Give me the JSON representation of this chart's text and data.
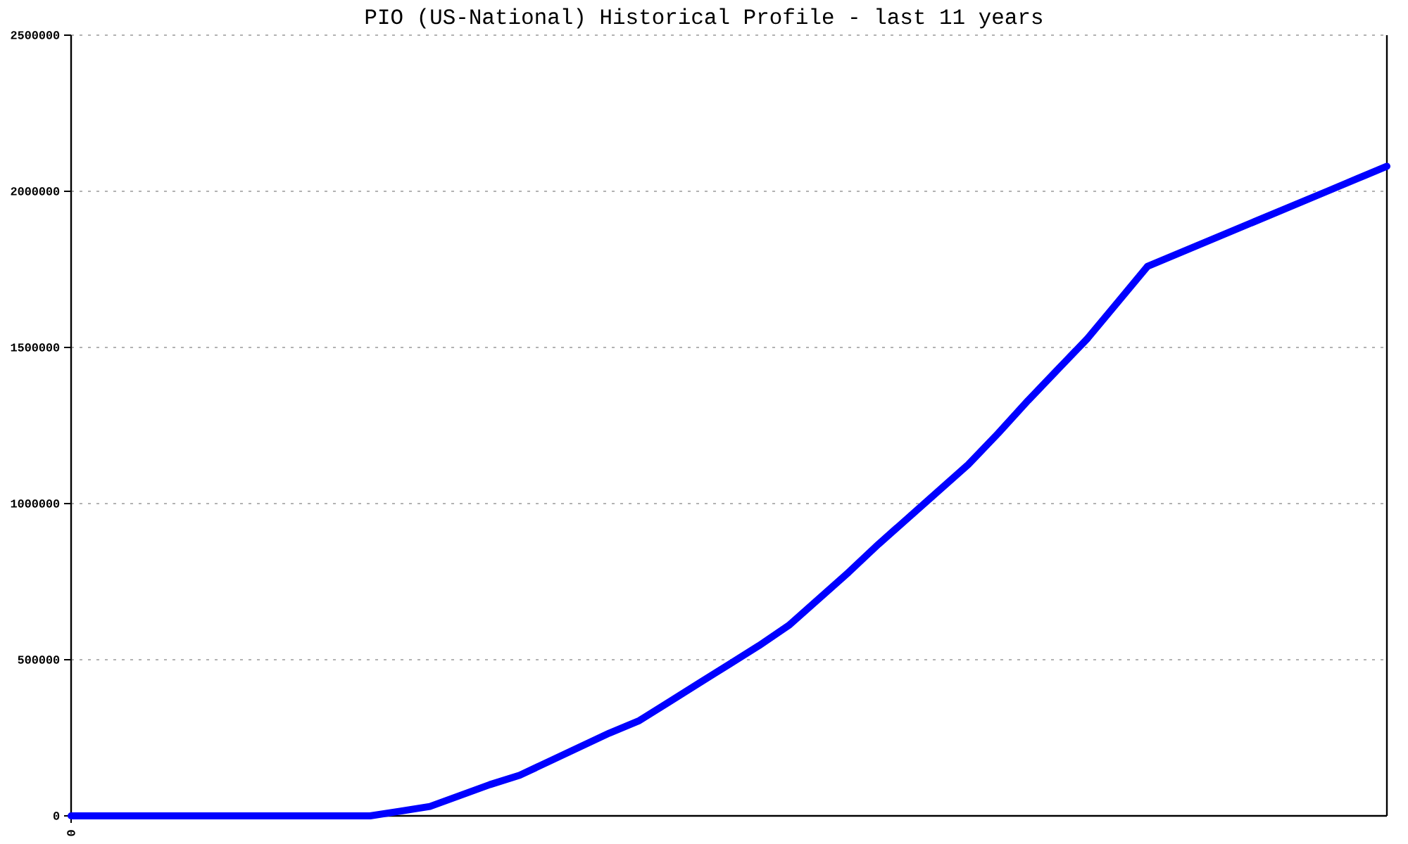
{
  "chart_data": {
    "type": "line",
    "title": "PIO (US-National) Historical Profile - last 11 years",
    "categories": [
      "0",
      null,
      null,
      null,
      null,
      null,
      null,
      null,
      null,
      null,
      null,
      null,
      null,
      null,
      null,
      null,
      null,
      null,
      null,
      null,
      null,
      null,
      null,
      null,
      null,
      null,
      null,
      null,
      null,
      null,
      null,
      null,
      null,
      null,
      null,
      null,
      null,
      null,
      null,
      null,
      null,
      null,
      null,
      null,
      null
    ],
    "values": [
      0,
      0,
      0,
      0,
      0,
      0,
      0,
      0,
      0,
      0,
      0,
      15000,
      30000,
      65000,
      100000,
      130000,
      175000,
      220000,
      265000,
      305000,
      365000,
      425000,
      485000,
      545000,
      610000,
      695000,
      780000,
      870000,
      955000,
      1040000,
      1125000,
      1225000,
      1330000,
      1430000,
      1530000,
      1645000,
      1760000,
      1800000,
      1840000,
      1880000,
      1920000,
      1960000,
      2000000,
      2040000,
      2080000
    ],
    "color": "#0000ff",
    "ylim": [
      0,
      2500000
    ],
    "yticks": [
      0,
      500000,
      1000000,
      1500000,
      2000000,
      2500000
    ],
    "grid": "y",
    "line_style": "solid"
  }
}
